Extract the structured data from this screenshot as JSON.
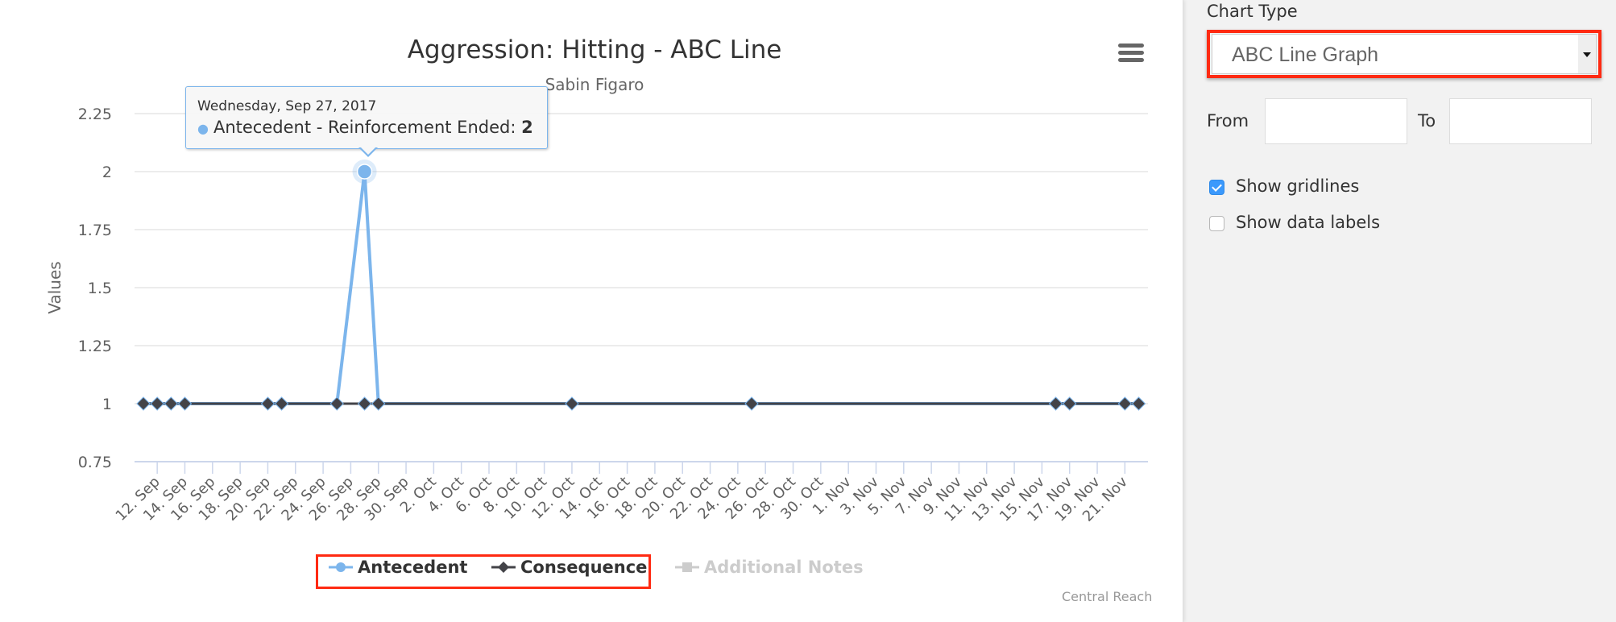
{
  "chart_data": {
    "type": "line",
    "title": "Aggression: Hitting - ABC Line",
    "subtitle": "Sabin Figaro",
    "xlabel": "",
    "ylabel": "Values",
    "ylim": [
      0.75,
      2.25
    ],
    "yticks": [
      "0.75",
      "1",
      "1.25",
      "1.5",
      "1.75",
      "2",
      "2.25"
    ],
    "grid": true,
    "legend_position": "bottom",
    "x_tick_labels": [
      "12. Sep",
      "14. Sep",
      "16. Sep",
      "18. Sep",
      "20. Sep",
      "22. Sep",
      "24. Sep",
      "26. Sep",
      "28. Sep",
      "30. Sep",
      "2. Oct",
      "4. Oct",
      "6. Oct",
      "8. Oct",
      "10. Oct",
      "12. Oct",
      "14. Oct",
      "16. Oct",
      "18. Oct",
      "20. Oct",
      "22. Oct",
      "24. Oct",
      "26. Oct",
      "28. Oct",
      "30. Oct",
      "1. Nov",
      "3. Nov",
      "5. Nov",
      "7. Nov",
      "9. Nov",
      "11. Nov",
      "13. Nov",
      "15. Nov",
      "17. Nov",
      "19. Nov",
      "21. Nov"
    ],
    "x": [
      "2017-09-11",
      "2017-09-12",
      "2017-09-13",
      "2017-09-14",
      "2017-09-20",
      "2017-09-21",
      "2017-09-25",
      "2017-09-27",
      "2017-09-28",
      "2017-10-12",
      "2017-10-25",
      "2017-11-16",
      "2017-11-17",
      "2017-11-21",
      "2017-11-22"
    ],
    "series": [
      {
        "name": "Antecedent",
        "color": "#7cb5ec",
        "marker": "circle",
        "values": [
          1,
          1,
          1,
          1,
          1,
          1,
          1,
          2,
          1,
          1,
          1,
          1,
          1,
          1,
          1
        ]
      },
      {
        "name": "Consequence",
        "color": "#434348",
        "marker": "diamond",
        "values": [
          1,
          1,
          1,
          1,
          1,
          1,
          1,
          1,
          1,
          1,
          1,
          1,
          1,
          1,
          1
        ]
      },
      {
        "name": "Additional Notes",
        "color": "#cccccc",
        "marker": "square",
        "hidden": true,
        "values": []
      }
    ],
    "tooltip": {
      "date": "Wednesday, Sep 27, 2017",
      "series_label": "Antecedent - Reinforcement Ended",
      "value": "2"
    },
    "credit": "Central Reach"
  },
  "chart": {
    "title": "Aggression: Hitting - ABC Line",
    "subtitle": "Sabin Figaro",
    "y_axis_title": "Values",
    "menu_icon": "hamburger-icon",
    "tooltip_date": "Wednesday, Sep 27, 2017",
    "tooltip_label": "Antecedent - Reinforcement Ended: ",
    "tooltip_value": "2",
    "legend": {
      "antecedent": "Antecedent",
      "consequence": "Consequence",
      "notes": "Additional Notes"
    },
    "credit": "Central Reach"
  },
  "controls": {
    "chart_type_label": "Chart Type",
    "chart_type_value": "ABC Line Graph",
    "from_label": "From",
    "from_value": "",
    "to_label": "To",
    "to_value": "",
    "show_gridlines_label": "Show gridlines",
    "show_gridlines_checked": true,
    "show_data_labels_label": "Show data labels",
    "show_data_labels_checked": false
  },
  "colors": {
    "antecedent": "#7cb5ec",
    "consequence": "#434348",
    "highlight": "#ff2a12",
    "checkbox": "#3b99fc"
  }
}
